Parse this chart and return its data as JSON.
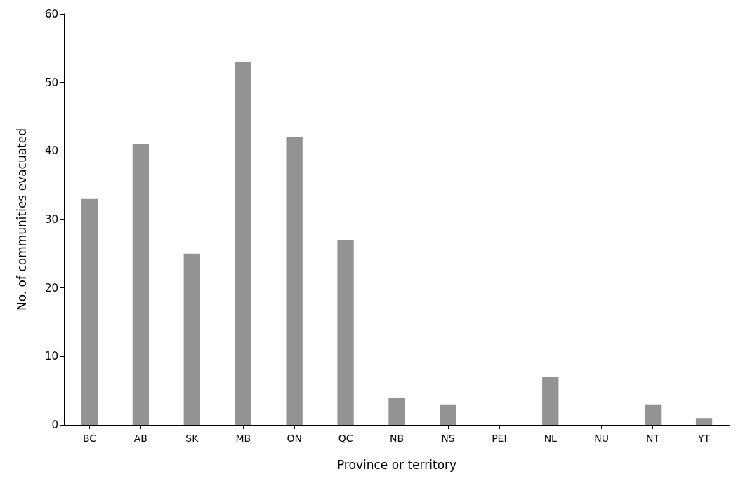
{
  "chart_data": {
    "type": "bar",
    "xlabel": "Province or territory",
    "ylabel": "No. of communities evacuated",
    "categories": [
      "BC",
      "AB",
      "SK",
      "MB",
      "ON",
      "QC",
      "NB",
      "NS",
      "PEI",
      "NL",
      "NU",
      "NT",
      "YT"
    ],
    "values": [
      33,
      41,
      25,
      53,
      42,
      27,
      4,
      3,
      0,
      7,
      0,
      3,
      1
    ],
    "color": "#939393",
    "ylim": [
      0,
      60
    ],
    "yticks": [
      0,
      10,
      20,
      30,
      40,
      50,
      60
    ],
    "grid": false
  }
}
